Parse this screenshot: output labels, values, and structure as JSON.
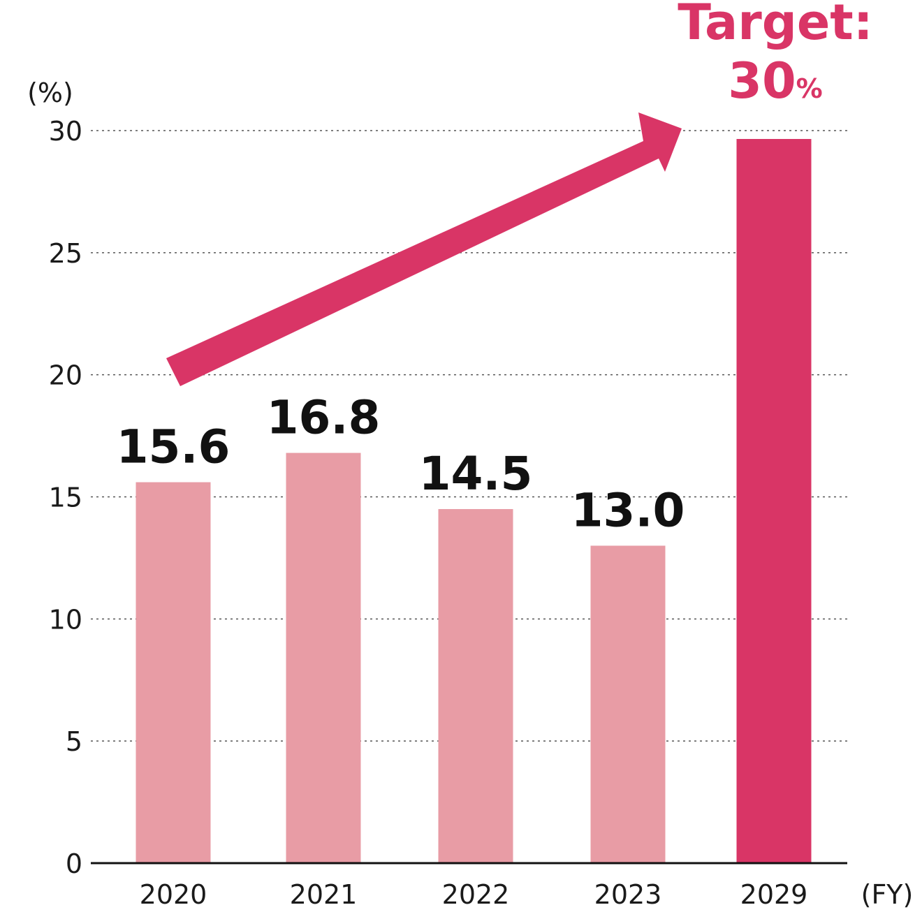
{
  "chart_data": {
    "type": "bar",
    "categories": [
      "2020",
      "2021",
      "2022",
      "2023",
      "2029"
    ],
    "values": [
      15.6,
      16.8,
      14.5,
      13.0,
      30
    ],
    "data_labels": [
      "15.6",
      "16.8",
      "14.5",
      "13.0",
      ""
    ],
    "ylabel": "(%)",
    "xlabel": "(FY)",
    "ylim": [
      0,
      30
    ],
    "yticks": [
      0,
      5,
      10,
      15,
      20,
      25,
      30
    ],
    "grid": true,
    "target": {
      "category": "2029",
      "label_prefix": "Target:",
      "value_text": "30",
      "unit_text": "%"
    },
    "annotation": "upward arrow toward target"
  },
  "colors": {
    "actual_bar": "#e89ca5",
    "target_bar": "#d93566",
    "arrow": "#d93566",
    "grid": "#555555",
    "axis": "#111111"
  }
}
